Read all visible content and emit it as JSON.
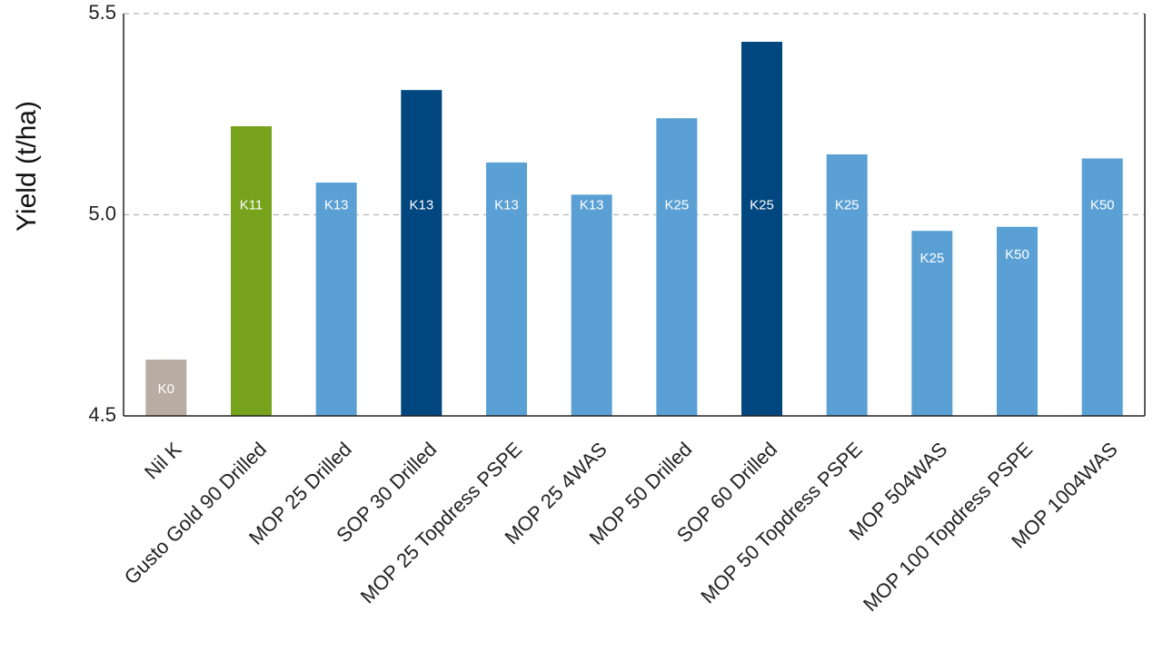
{
  "chart_data": {
    "type": "bar",
    "title": "",
    "xlabel": "",
    "ylabel": "Yield (t/ha)",
    "ylim": [
      4.5,
      5.5
    ],
    "yticks": [
      "4.5",
      "5.0",
      "5.5"
    ],
    "grid": "horizontal dashed",
    "categories": [
      "Nil K",
      "Gusto Gold 90 Drilled",
      "MOP 25 Drilled",
      "SOP 30 Drilled",
      "MOP 25 Topdress PSPE",
      "MOP 25 4WAS",
      "MOP 50 Drilled",
      "SOP 60 Drilled",
      "MOP 50 Topdress PSPE",
      "MOP 504WAS",
      "MOP 100 Topdress PSPE",
      "MOP 1004WAS"
    ],
    "values": [
      4.64,
      5.22,
      5.08,
      5.31,
      5.13,
      5.05,
      5.24,
      5.43,
      5.15,
      4.96,
      4.97,
      5.14
    ],
    "bar_labels": [
      "K0",
      "K11",
      "K13",
      "K13",
      "K13",
      "K13",
      "K25",
      "K25",
      "K25",
      "K25",
      "K50",
      "K50"
    ],
    "bar_colors": [
      "#b9ada3",
      "#76a21c",
      "#5aa0d4",
      "#00467f",
      "#5aa0d4",
      "#5aa0d4",
      "#5aa0d4",
      "#00467f",
      "#5aa0d4",
      "#5aa0d4",
      "#5aa0d4",
      "#5aa0d4"
    ]
  }
}
